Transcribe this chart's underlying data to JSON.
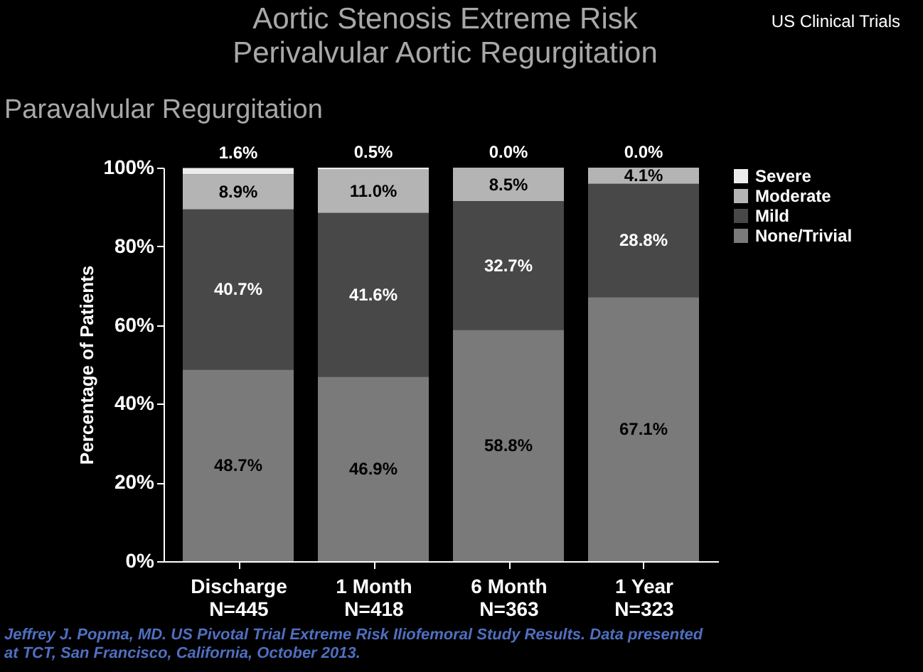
{
  "chart_data": {
    "type": "bar",
    "stacked": true,
    "title": [
      "Aortic Stenosis Extreme Risk",
      "Perivalvular Aortic Regurgitation"
    ],
    "subtitle": "Paravalvular Regurgitation",
    "ylabel": "Percentage of Patients",
    "categories": [
      "Discharge\nN=445",
      "1 Month\nN=418",
      "6 Month\nN=363",
      "1 Year\nN=323"
    ],
    "series": [
      {
        "name": "None/Trivial",
        "color": "#7a7a7a",
        "values": [
          48.7,
          46.9,
          58.8,
          67.1
        ],
        "value_labels": [
          "48.7%",
          "46.9%",
          "58.8%",
          "67.1%"
        ]
      },
      {
        "name": "Mild",
        "color": "#484848",
        "values": [
          40.7,
          41.6,
          32.7,
          28.8
        ],
        "value_labels": [
          "40.7%",
          "41.6%",
          "32.7%",
          "28.8%"
        ]
      },
      {
        "name": "Moderate",
        "color": "#b4b4b4",
        "values": [
          8.9,
          11.0,
          8.5,
          4.1
        ],
        "value_labels": [
          "8.9%",
          "11.0%",
          "8.5%",
          "4.1%"
        ]
      },
      {
        "name": "Severe",
        "color": "#ececec",
        "values": [
          1.6,
          0.5,
          0.0,
          0.0
        ],
        "value_labels": [
          "1.6%",
          "0.5%",
          "0.0%",
          "0.0%"
        ]
      }
    ],
    "ylim": [
      0,
      100
    ],
    "yticks": [
      {
        "value": 0,
        "label": "0%"
      },
      {
        "value": 20,
        "label": "20%"
      },
      {
        "value": 40,
        "label": "40%"
      },
      {
        "value": 60,
        "label": "60%"
      },
      {
        "value": 80,
        "label": "80%"
      },
      {
        "value": 100,
        "label": "100%"
      }
    ],
    "grid": false,
    "legend": "right",
    "annotations": [
      "US Clinical Trials",
      "Jeffrey J. Popma, MD. US Pivotal Trial Extreme Risk Iliofemoral Study Results. Data presented at TCT, San Francisco, California, October 2013."
    ]
  }
}
